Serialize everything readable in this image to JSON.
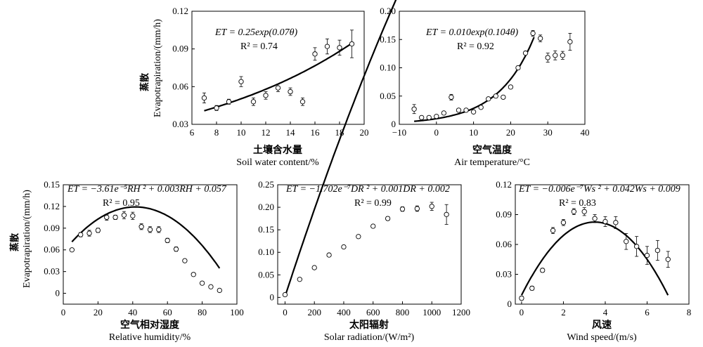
{
  "figure": {
    "ylabel_cn": "蒸散",
    "ylabel_en": "Evapotrapiration/(mm/h)"
  },
  "chart_data": [
    {
      "type": "scatter",
      "id": "soil",
      "xlabel_cn": "土壤含水量",
      "xlabel_en": "Soil water content/%",
      "equation": "ET = 0.25exp(0.07θ)",
      "r2": "R² = 0.74",
      "xlim": [
        6,
        20
      ],
      "ylim": [
        0.03,
        0.12
      ],
      "xticks": [
        "6",
        "8",
        "10",
        "12",
        "14",
        "16",
        "18",
        "20"
      ],
      "yticks": [
        "0.03",
        "0.06",
        "0.09",
        "0.12"
      ],
      "fit": "exp",
      "fit_range": [
        7,
        19
      ],
      "series": [
        {
          "x": [
            7,
            8,
            9,
            10,
            11,
            12,
            13,
            14,
            15,
            16,
            17,
            18,
            19
          ],
          "y": [
            0.051,
            0.043,
            0.048,
            0.064,
            0.048,
            0.053,
            0.059,
            0.056,
            0.048,
            0.086,
            0.092,
            0.091,
            0.094
          ],
          "err": [
            0.004,
            0.002,
            0.002,
            0.004,
            0.003,
            0.003,
            0.003,
            0.003,
            0.003,
            0.005,
            0.006,
            0.006,
            0.011
          ]
        }
      ]
    },
    {
      "type": "scatter",
      "id": "air",
      "xlabel_cn": "空气温度",
      "xlabel_en": "Air temperature/°C",
      "equation": "ET = 0.010exp(0.104θ)",
      "r2": "R² = 0.92",
      "xlim": [
        -10,
        40
      ],
      "ylim": [
        0,
        0.2
      ],
      "xticks": [
        "−10",
        "0",
        "10",
        "20",
        "30",
        "40"
      ],
      "yticks": [
        "0",
        "0.05",
        "0.10",
        "0.15",
        "0.20"
      ],
      "fit": "exp",
      "fit_range": [
        -6,
        26.3
      ],
      "series": [
        {
          "x": [
            -6,
            -4,
            -2,
            0,
            2,
            4,
            6,
            8,
            10,
            12,
            14,
            16,
            18,
            20,
            22,
            24,
            26,
            28,
            30,
            32,
            34,
            36
          ],
          "y": [
            0.027,
            0.012,
            0.012,
            0.014,
            0.02,
            0.048,
            0.025,
            0.025,
            0.022,
            0.03,
            0.045,
            0.05,
            0.048,
            0.066,
            0.1,
            0.126,
            0.161,
            0.152,
            0.118,
            0.122,
            0.122,
            0.146
          ],
          "err": [
            0.008,
            0.002,
            0.002,
            0.002,
            0.002,
            0.005,
            0.003,
            0.002,
            0.003,
            0.002,
            0.002,
            0.003,
            0.002,
            0.002,
            0.003,
            0.003,
            0.005,
            0.006,
            0.008,
            0.008,
            0.007,
            0.015
          ]
        }
      ]
    },
    {
      "type": "scatter",
      "id": "rh",
      "xlabel_cn": "空气相对湿度",
      "xlabel_en": "Relative humidity/%",
      "equation": "ET = −3.61e⁻⁵RH ² + 0.003RH + 0.057",
      "r2": "R² = 0.95",
      "xlim": [
        0,
        100
      ],
      "ylim": [
        -0.015,
        0.15
      ],
      "xticks": [
        "0",
        "20",
        "40",
        "60",
        "80",
        "100"
      ],
      "yticks": [
        "0",
        "0.03",
        "0.06",
        "0.09",
        "0.12",
        "0.15"
      ],
      "fit": "quad",
      "fit_range": [
        5,
        90
      ],
      "series": [
        {
          "x": [
            5,
            10,
            15,
            20,
            25,
            30,
            35,
            40,
            45,
            50,
            55,
            60,
            65,
            70,
            75,
            80,
            85,
            90
          ],
          "y": [
            0.06,
            0.081,
            0.083,
            0.087,
            0.105,
            0.105,
            0.108,
            0.107,
            0.092,
            0.088,
            0.088,
            0.073,
            0.061,
            0.045,
            0.026,
            0.014,
            0.009,
            0.004
          ],
          "err": [
            0.002,
            0.003,
            0.004,
            0.003,
            0.004,
            0.003,
            0.005,
            0.005,
            0.004,
            0.004,
            0.004,
            0.003,
            0.003,
            0.002,
            0.002,
            0.002,
            0.002,
            0.002
          ]
        }
      ]
    },
    {
      "type": "scatter",
      "id": "solar",
      "xlabel_cn": "太阳辐射",
      "xlabel_en": "Solar radiation/(W/m²)",
      "equation": "ET = −1.702e⁻⁷DR ² + 0.001DR + 0.002",
      "r2": "R² = 0.99",
      "xlim": [
        -50,
        1200
      ],
      "ylim": [
        -0.015,
        0.25
      ],
      "xticks": [
        "0",
        "200",
        "400",
        "600",
        "800",
        "1000",
        "1200"
      ],
      "yticks": [
        "0",
        "0.05",
        "0.10",
        "0.15",
        "0.20",
        "0.25"
      ],
      "fit": "quad",
      "fit_range": [
        0,
        1100
      ],
      "series": [
        {
          "x": [
            0,
            100,
            200,
            300,
            400,
            500,
            600,
            700,
            800,
            900,
            1000,
            1100
          ],
          "y": [
            0.006,
            0.04,
            0.066,
            0.094,
            0.112,
            0.135,
            0.158,
            0.175,
            0.196,
            0.197,
            0.202,
            0.184
          ],
          "err": [
            0.002,
            0.002,
            0.002,
            0.002,
            0.002,
            0.003,
            0.003,
            0.004,
            0.005,
            0.006,
            0.009,
            0.022
          ]
        }
      ]
    },
    {
      "type": "scatter",
      "id": "wind",
      "xlabel_cn": "风速",
      "xlabel_en": "Wind speed/(m/s)",
      "equation": "ET = −0.006e⁻⁷Ws ² + 0.042Ws + 0.009",
      "r2": "R² = 0.83",
      "xlim": [
        -0.3,
        8
      ],
      "ylim": [
        0,
        0.12
      ],
      "xticks": [
        "0",
        "2",
        "4",
        "6",
        "8"
      ],
      "yticks": [
        "0",
        "0.03",
        "0.06",
        "0.09",
        "0.12"
      ],
      "fit": "quad",
      "fit_range": [
        0,
        7
      ],
      "series": [
        {
          "x": [
            0,
            0.5,
            1,
            1.5,
            2,
            2.5,
            3,
            3.5,
            4,
            4.5,
            5,
            5.5,
            6,
            6.5,
            7
          ],
          "y": [
            0.006,
            0.016,
            0.034,
            0.074,
            0.082,
            0.093,
            0.093,
            0.086,
            0.083,
            0.082,
            0.063,
            0.058,
            0.049,
            0.054,
            0.045
          ],
          "err": [
            0.002,
            0.002,
            0.002,
            0.003,
            0.003,
            0.003,
            0.004,
            0.004,
            0.005,
            0.006,
            0.008,
            0.01,
            0.009,
            0.01,
            0.008
          ]
        }
      ]
    }
  ]
}
